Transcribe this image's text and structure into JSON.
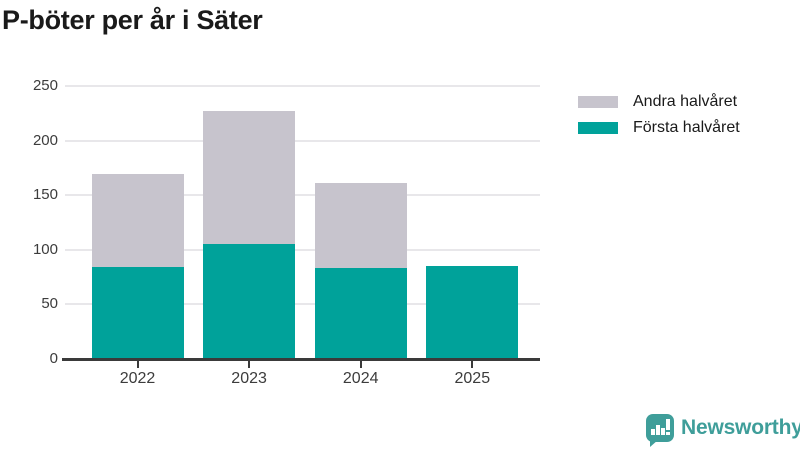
{
  "title": "P-böter per år i Säter",
  "chart_data": {
    "type": "bar",
    "stacked": true,
    "title": "P-böter per år i Säter",
    "categories": [
      "2022",
      "2023",
      "2024",
      "2025"
    ],
    "series": [
      {
        "name": "Första halvåret",
        "color": "#00a29a",
        "values": [
          84,
          105,
          83,
          85
        ]
      },
      {
        "name": "Andra halvåret",
        "color": "#c7c4cd",
        "values": [
          85,
          122,
          78,
          0
        ]
      }
    ],
    "totals": [
      169,
      227,
      161,
      85
    ],
    "xlabel": "",
    "ylabel": "",
    "ylim": [
      0,
      250
    ],
    "yticks": [
      0,
      50,
      100,
      150,
      200,
      250
    ],
    "grid": true,
    "legend_position": "top-right"
  },
  "legend": {
    "items": [
      {
        "label": "Andra halvåret",
        "color": "#c7c4cd"
      },
      {
        "label": "Första halvåret",
        "color": "#00a29a"
      }
    ]
  },
  "branding": {
    "name": "Newsworthy",
    "color": "#3f9e9a",
    "icon": "newsworthy-chart-bubble-icon"
  }
}
